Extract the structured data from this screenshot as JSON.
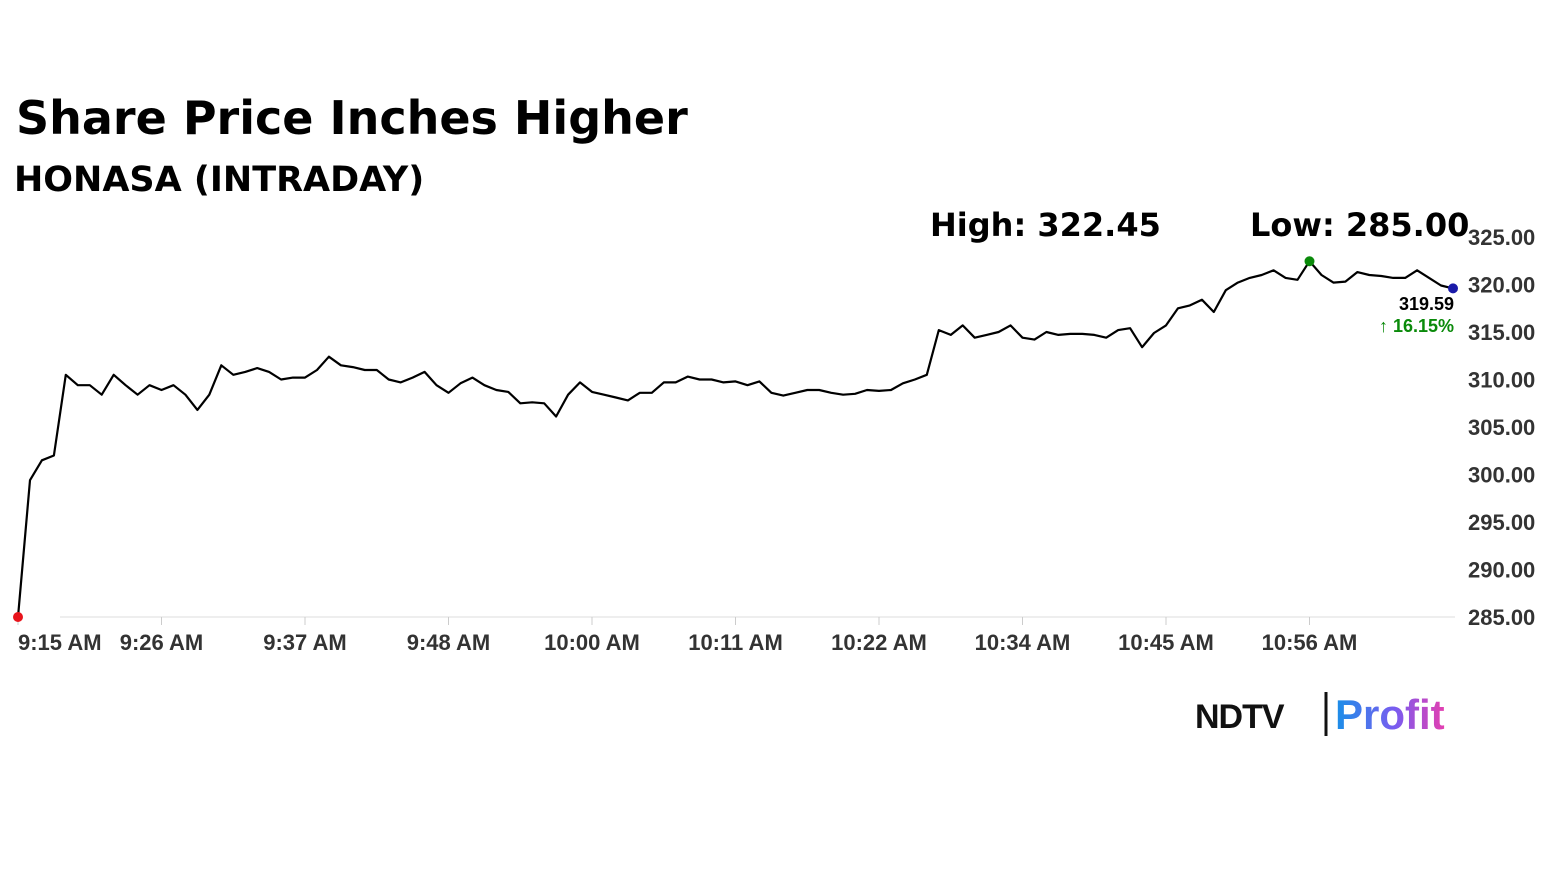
{
  "chart_data": {
    "type": "line",
    "title": "Share Price Inches Higher",
    "subtitle": "HONASA (INTRADAY)",
    "high_label": "High: 322.45",
    "low_label": "Low: 285.00",
    "change_label": "↑ 16.15%",
    "color": "#000000",
    "low_color": "#e8141c",
    "high_color": "#0a8a0a",
    "last_color": "#1a1aa8",
    "categories": [
      "9:15 AM",
      null,
      null,
      null,
      null,
      null,
      null,
      null,
      null,
      null,
      null,
      null,
      "9:26 AM",
      null,
      null,
      null,
      null,
      null,
      null,
      null,
      null,
      null,
      null,
      null,
      "9:37 AM",
      null,
      null,
      null,
      null,
      null,
      null,
      null,
      null,
      null,
      null,
      null,
      "9:48 AM",
      null,
      null,
      null,
      null,
      null,
      null,
      null,
      null,
      null,
      null,
      null,
      "10:00 AM",
      null,
      null,
      null,
      null,
      null,
      null,
      null,
      null,
      null,
      null,
      null,
      "10:11 AM",
      null,
      null,
      null,
      null,
      null,
      null,
      null,
      null,
      null,
      null,
      null,
      "10:22 AM",
      null,
      null,
      null,
      null,
      null,
      null,
      null,
      null,
      null,
      null,
      null,
      "10:34 AM",
      null,
      null,
      null,
      null,
      null,
      null,
      null,
      null,
      null,
      null,
      null,
      "10:45 AM",
      null,
      null,
      null,
      null,
      null,
      null,
      null,
      null,
      null,
      null,
      null,
      "10:56 AM",
      null,
      null,
      null,
      null,
      null,
      null,
      null,
      null,
      null,
      null,
      null,
      null
    ],
    "values": [
      285.0,
      299.4,
      301.5,
      302.0,
      310.5,
      309.4,
      309.4,
      308.4,
      310.5,
      309.4,
      308.4,
      309.4,
      308.9,
      309.4,
      308.4,
      306.8,
      308.4,
      311.5,
      310.5,
      310.8,
      311.2,
      310.8,
      310.0,
      310.2,
      310.2,
      311.0,
      312.4,
      311.5,
      311.3,
      311.0,
      311.0,
      310.0,
      309.7,
      310.2,
      310.8,
      309.4,
      308.6,
      309.6,
      310.2,
      309.4,
      308.9,
      308.7,
      307.5,
      307.6,
      307.5,
      306.1,
      308.4,
      309.7,
      308.7,
      308.4,
      308.1,
      307.8,
      308.6,
      308.6,
      309.7,
      309.7,
      310.3,
      310.0,
      310.0,
      309.7,
      309.8,
      309.4,
      309.8,
      308.6,
      308.3,
      308.6,
      308.9,
      308.9,
      308.6,
      308.4,
      308.5,
      308.9,
      308.8,
      308.9,
      309.6,
      310.0,
      310.5,
      315.2,
      314.7,
      315.7,
      314.4,
      314.7,
      315.0,
      315.7,
      314.4,
      314.2,
      315.0,
      314.7,
      314.8,
      314.8,
      314.7,
      314.4,
      315.2,
      315.4,
      313.4,
      314.9,
      315.7,
      317.5,
      317.8,
      318.4,
      317.1,
      319.4,
      320.2,
      320.7,
      321.0,
      321.5,
      320.7,
      320.5,
      322.45,
      321.0,
      320.2,
      320.3,
      321.3,
      321.0,
      320.9,
      320.7,
      320.7,
      321.5,
      320.7,
      319.9,
      319.59
    ],
    "ylim": [
      285,
      325
    ],
    "yticks": [
      {
        "value": 285,
        "label": "285.00"
      },
      {
        "value": 290,
        "label": "290.00"
      },
      {
        "value": 295,
        "label": "295.00"
      },
      {
        "value": 300,
        "label": "300.00"
      },
      {
        "value": 305,
        "label": "305.00"
      },
      {
        "value": 310,
        "label": "310.00"
      },
      {
        "value": 315,
        "label": "315.00"
      },
      {
        "value": 320,
        "label": "320.00"
      },
      {
        "value": 325,
        "label": "325.00"
      }
    ],
    "grid": false
  },
  "logo": {
    "left": "NDTV",
    "right": "Profit"
  }
}
